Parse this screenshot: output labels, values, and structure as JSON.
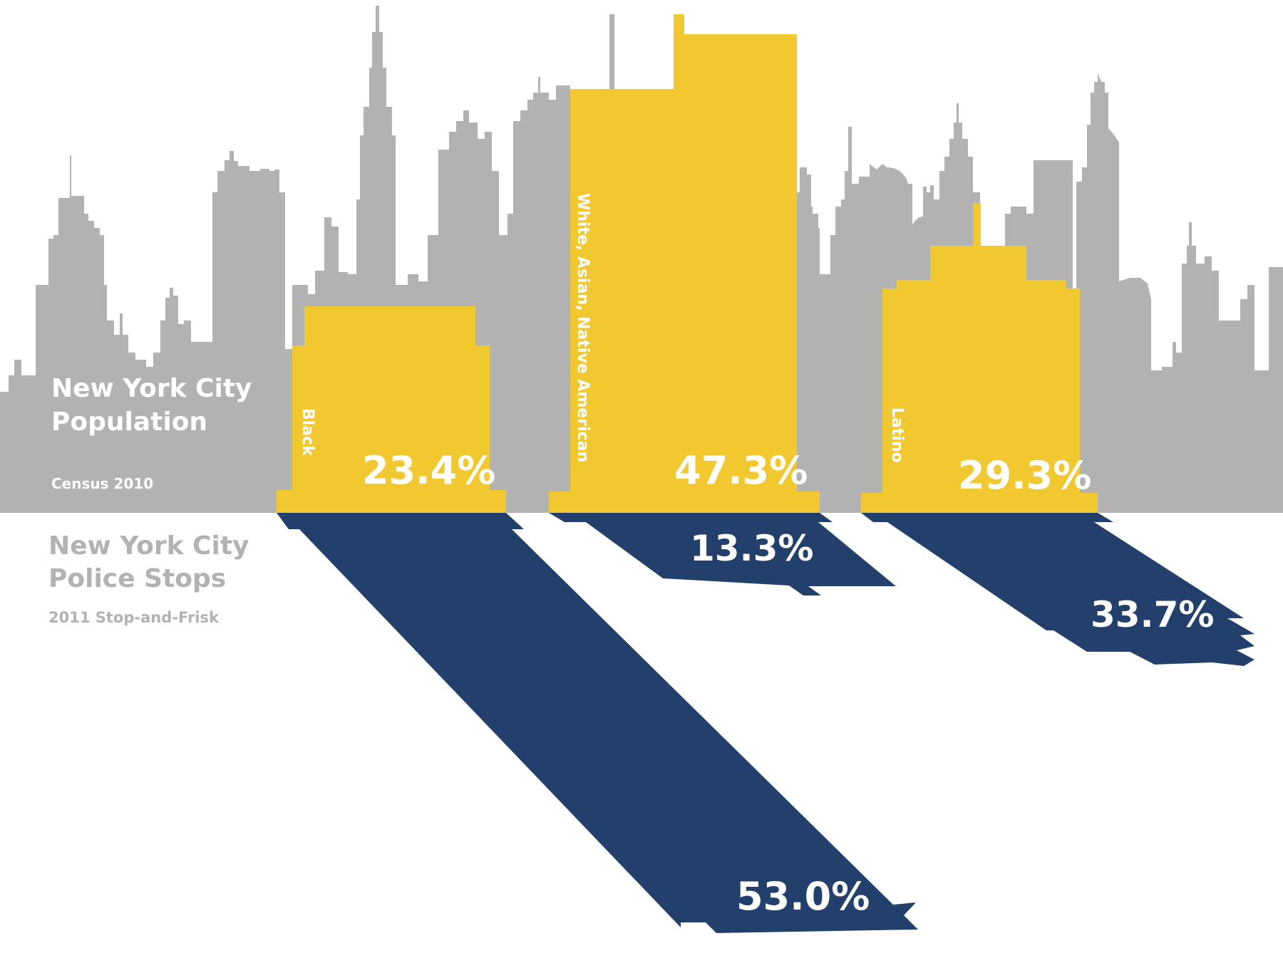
{
  "colors": {
    "skyline": "#b2b2b2",
    "population_bar": "#f1c830",
    "stops_bar": "#233f6c",
    "background": "#ffffff",
    "label_on_dark": "#ffffff",
    "stops_heading": "#b2b2b2"
  },
  "headings": {
    "population_title_line1": "New York City",
    "population_title_line2": "Population",
    "population_source": "Census 2010",
    "stops_title_line1": "New York City",
    "stops_title_line2": "Police Stops",
    "stops_source": "2011 Stop-and-Frisk"
  },
  "chart_data": {
    "type": "bar",
    "categories": [
      "Black",
      "White, Asian, Native American",
      "Latino"
    ],
    "series": [
      {
        "name": "New York City Population",
        "values": [
          23.4,
          47.3,
          29.3
        ]
      },
      {
        "name": "New York City Police Stops",
        "values": [
          53.0,
          13.3,
          33.7
        ]
      }
    ],
    "value_labels": {
      "population": [
        "23.4%",
        "47.3%",
        "29.3%"
      ],
      "stops": [
        "53.0%",
        "13.3%",
        "33.7%"
      ]
    },
    "unit": "%"
  }
}
